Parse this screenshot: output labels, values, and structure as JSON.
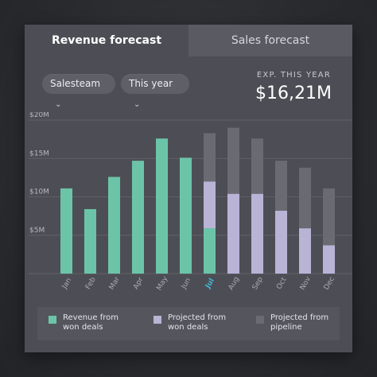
{
  "tabs": [
    {
      "label": "Revenue forecast",
      "active": true
    },
    {
      "label": "Sales forecast",
      "active": false
    }
  ],
  "filters": {
    "team": "Salesteam",
    "period": "This year"
  },
  "summary": {
    "label": "EXP. THIS YEAR",
    "value": "$16,21M"
  },
  "chart_data": {
    "type": "bar",
    "stacked": true,
    "categories": [
      "Jan",
      "Feb",
      "Mar",
      "Apr",
      "May",
      "Jun",
      "Jul",
      "Aug",
      "Sep",
      "Oct",
      "Nov",
      "Dec"
    ],
    "highlighted_category": "Jul",
    "y_ticks": [
      "$20M",
      "$15M",
      "$10M",
      "$5M"
    ],
    "ylim": [
      0,
      20
    ],
    "series": [
      {
        "name": "Revenue from won deals",
        "color": "#6cc4a8",
        "values": [
          11.1,
          8.4,
          12.6,
          14.7,
          17.6,
          15.1,
          5.9,
          0,
          0,
          0,
          0,
          0
        ]
      },
      {
        "name": "Projected from won deals",
        "color": "#b9b3d6",
        "values": [
          0,
          0,
          0,
          0,
          0,
          0,
          6.1,
          10.4,
          10.4,
          8.2,
          5.9,
          3.7
        ]
      },
      {
        "name": "Projected from pipeline",
        "color": "#6a6b72",
        "values": [
          0,
          0,
          0,
          0,
          0,
          0,
          6.3,
          8.6,
          7.2,
          6.5,
          7.9,
          7.4
        ]
      }
    ]
  },
  "legend": [
    {
      "line1": "Revenue from",
      "line2": "won deals",
      "color": "#6cc4a8"
    },
    {
      "line1": "Projected from",
      "line2": "won deals",
      "color": "#b9b3d6"
    },
    {
      "line1": "Projected from",
      "line2": "pipeline",
      "color": "#6a6b72"
    }
  ],
  "colors": {
    "accent": "#3fb8d8",
    "card": "#4d4e55"
  }
}
